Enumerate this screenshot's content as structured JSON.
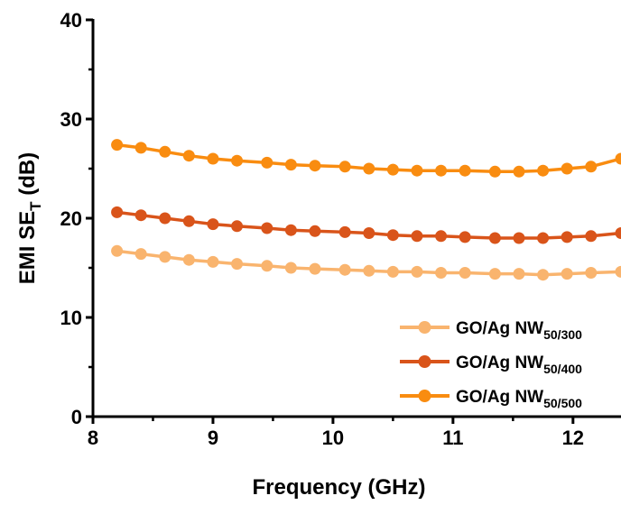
{
  "chart_data": {
    "type": "line",
    "xlabel": "Frequency (GHz)",
    "ylabel": {
      "main": "EMI SE",
      "sub": "T",
      "suffix": " (dB)"
    },
    "xlim": [
      8,
      12.4
    ],
    "ylim": [
      0,
      40
    ],
    "xticks": [
      8,
      9,
      10,
      11,
      12
    ],
    "yticks": [
      0,
      10,
      20,
      30,
      40
    ],
    "grid": false,
    "legend_position": "bottom-right",
    "x": [
      8.2,
      8.4,
      8.6,
      8.8,
      9.0,
      9.2,
      9.45,
      9.65,
      9.85,
      10.1,
      10.3,
      10.5,
      10.7,
      10.9,
      11.1,
      11.35,
      11.55,
      11.75,
      11.95,
      12.15,
      12.4
    ],
    "series": [
      {
        "name": "GO/Ag NW",
        "name_sub": "50/300",
        "color": "#F9B46E",
        "values": [
          16.7,
          16.4,
          16.1,
          15.8,
          15.6,
          15.4,
          15.2,
          15.0,
          14.9,
          14.8,
          14.7,
          14.6,
          14.6,
          14.5,
          14.5,
          14.4,
          14.4,
          14.3,
          14.4,
          14.5,
          14.6
        ]
      },
      {
        "name": "GO/Ag NW",
        "name_sub": "50/400",
        "color": "#D9541A",
        "values": [
          20.6,
          20.3,
          20.0,
          19.7,
          19.4,
          19.2,
          19.0,
          18.8,
          18.7,
          18.6,
          18.5,
          18.3,
          18.2,
          18.2,
          18.1,
          18.0,
          18.0,
          18.0,
          18.1,
          18.2,
          18.5
        ]
      },
      {
        "name": "GO/Ag NW",
        "name_sub": "50/500",
        "color": "#F98C10",
        "values": [
          27.4,
          27.1,
          26.7,
          26.3,
          26.0,
          25.8,
          25.6,
          25.4,
          25.3,
          25.2,
          25.0,
          24.9,
          24.8,
          24.8,
          24.8,
          24.7,
          24.7,
          24.8,
          25.0,
          25.2,
          26.0
        ]
      }
    ]
  }
}
